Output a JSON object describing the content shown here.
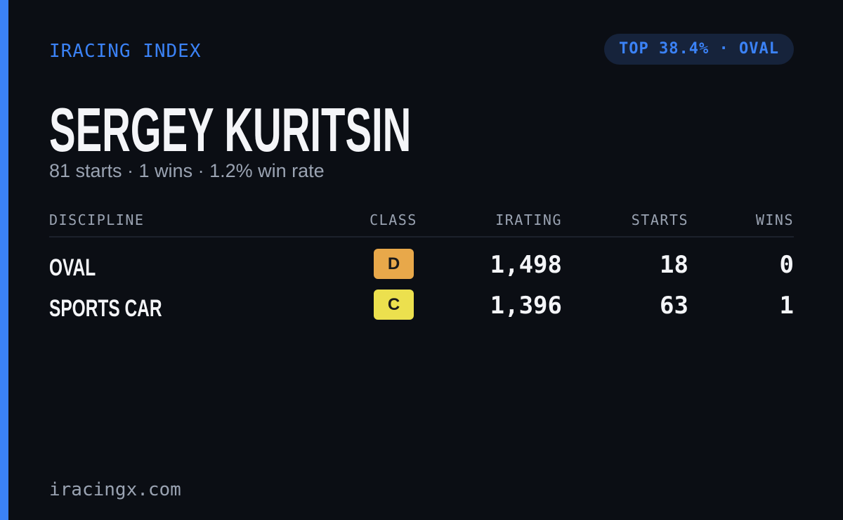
{
  "header": {
    "brand": "IRACING INDEX",
    "badge": "TOP 38.4% · OVAL"
  },
  "profile": {
    "name": "SERGEY KURITSIN",
    "summary": "81 starts · 1 wins · 1.2% win rate"
  },
  "table": {
    "headers": [
      "DISCIPLINE",
      "CLASS",
      "IRATING",
      "STARTS",
      "WINS"
    ],
    "rows": [
      [
        "OVAL",
        "D",
        "1,498",
        "18",
        "0"
      ],
      [
        "SPORTS CAR",
        "C",
        "1,396",
        "63",
        "1"
      ]
    ]
  },
  "footer": {
    "site": "iracingx.com"
  }
}
